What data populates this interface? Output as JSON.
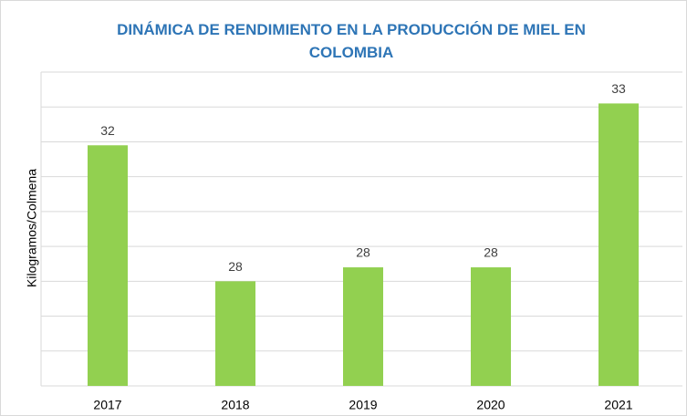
{
  "chart_data": {
    "type": "bar",
    "title": "DINÁMICA DE RENDIMIENTO EN LA PRODUCCIÓN DE MIEL EN COLOMBIA",
    "y_label": "Kilogramos/Colmena",
    "categories": [
      "2017",
      "2018",
      "2019",
      "2020",
      "2021"
    ],
    "values": [
      31.9,
      28.0,
      28.4,
      28.4,
      33.1
    ],
    "value_labels": [
      "32",
      "28",
      "28",
      "28",
      "33"
    ],
    "color": "#92D050",
    "ylim": [
      25,
      34
    ],
    "yticks": [
      25,
      26,
      27,
      28,
      29,
      30,
      31,
      32,
      33,
      34
    ],
    "show_ytick_labels": false,
    "grid": true
  }
}
